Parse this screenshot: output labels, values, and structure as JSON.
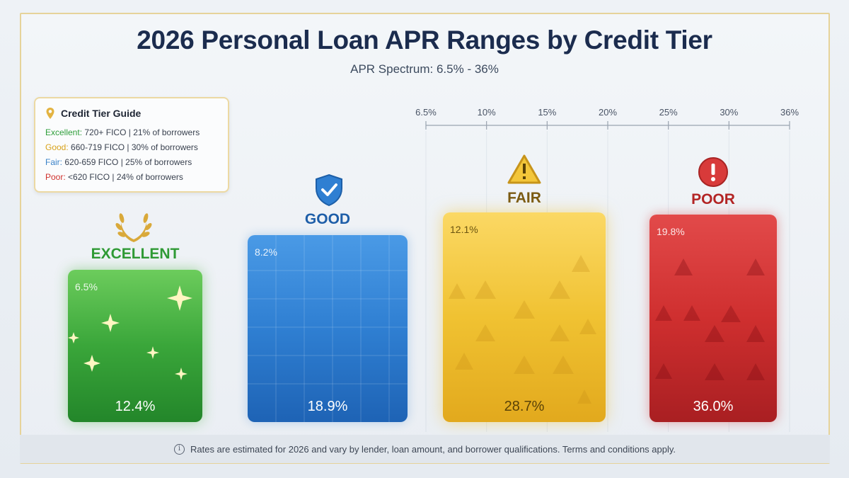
{
  "title": "2026 Personal Loan APR Ranges by Credit Tier",
  "subtitle": "APR Spectrum: 6.5% - 36%",
  "legend": {
    "title": "Credit Tier Guide",
    "icon": "location-pin-icon",
    "items": [
      {
        "tier": "Excellent:",
        "desc": "720+ FICO | 21% of borrowers",
        "color": "#2e9e3a"
      },
      {
        "tier": "Good:",
        "desc": "660-719 FICO | 30% of borrowers",
        "color": "#d8a21a"
      },
      {
        "tier": "Fair:",
        "desc": "620-659 FICO | 25% of borrowers",
        "color": "#3a82c8"
      },
      {
        "tier": "Poor:",
        "desc": "<620 FICO | 24% of borrowers",
        "color": "#d0312d"
      }
    ]
  },
  "chart_data": {
    "type": "bar",
    "title": "2026 Personal Loan APR Ranges by Credit Tier",
    "subtitle": "APR Spectrum: 6.5% - 36%",
    "axis_ticks": [
      "6.5%",
      "10%",
      "15%",
      "20%",
      "25%",
      "30%",
      "36%"
    ],
    "xlim": [
      6.5,
      36
    ],
    "categories": [
      "EXCELLENT",
      "GOOD",
      "FAIR",
      "POOR"
    ],
    "series": [
      {
        "values_low": [
          6.5,
          8.2,
          12.1,
          19.8
        ],
        "values_high": [
          12.4,
          18.9,
          28.7,
          36.0
        ]
      }
    ],
    "low_labels": [
      "6.5%",
      "8.2%",
      "12.1%",
      "19.8%"
    ],
    "high_labels": [
      "12.4%",
      "18.9%",
      "28.7%",
      "36.0%"
    ],
    "colors": [
      "#3aa63a",
      "#2f7fd2",
      "#f0c232",
      "#cf2f2f"
    ],
    "icons": [
      "laurel-wreath-icon",
      "shield-check-icon",
      "warning-triangle-icon",
      "alert-circle-icon"
    ],
    "grid": true
  },
  "footer": {
    "icon": "info-icon",
    "text": "Rates are estimated for 2026 and vary by lender, loan amount, and borrower qualifications. Terms and conditions apply."
  }
}
